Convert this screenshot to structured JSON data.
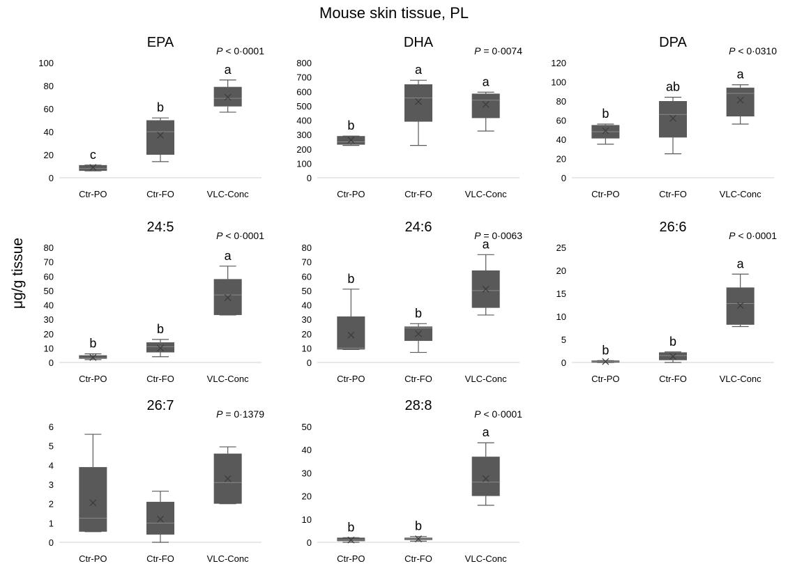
{
  "figure": {
    "title": "Mouse skin tissue, PL",
    "ylabel": "μg/g tissue"
  },
  "colors": {
    "box": "#595959",
    "whisker": "#595959",
    "axis": "#d9d9d9",
    "mean": "#3a3a3a"
  },
  "chart_data": [
    {
      "type": "boxplot",
      "title": "EPA",
      "p_prefix": "P",
      "p_text": " < 0·0001",
      "categories": [
        "Ctr-PO",
        "Ctr-FO",
        "VLC-Conc"
      ],
      "yticks": [
        "0",
        "20",
        "40",
        "60",
        "80",
        "100"
      ],
      "ylim": [
        0,
        100
      ],
      "boxes": [
        {
          "min": 6,
          "q1": 6,
          "median": 8,
          "q3": 11,
          "max": 11,
          "mean": 9,
          "letter": "c"
        },
        {
          "min": 14,
          "q1": 20,
          "median": 40,
          "q3": 50,
          "max": 52,
          "mean": 37,
          "letter": "b"
        },
        {
          "min": 57,
          "q1": 62,
          "median": 69,
          "q3": 79,
          "max": 85,
          "mean": 70,
          "letter": "a"
        }
      ]
    },
    {
      "type": "boxplot",
      "title": "DHA",
      "p_prefix": "P",
      "p_text": " = 0·0074",
      "categories": [
        "Ctr-PO",
        "Ctr-FO",
        "VLC-Conc"
      ],
      "yticks": [
        "0",
        "100",
        "200",
        "300",
        "400",
        "500",
        "600",
        "700",
        "800"
      ],
      "ylim": [
        0,
        800
      ],
      "boxes": [
        {
          "min": 225,
          "q1": 230,
          "median": 250,
          "q3": 290,
          "max": 290,
          "mean": 262,
          "letter": "b"
        },
        {
          "min": 225,
          "q1": 390,
          "median": 555,
          "q3": 650,
          "max": 678,
          "mean": 530,
          "letter": "a"
        },
        {
          "min": 325,
          "q1": 415,
          "median": 540,
          "q3": 585,
          "max": 595,
          "mean": 510,
          "letter": "a"
        }
      ]
    },
    {
      "type": "boxplot",
      "title": "DPA",
      "p_prefix": "P",
      "p_text": " < 0·0310",
      "categories": [
        "Ctr-PO",
        "Ctr-FO",
        "VLC-Conc"
      ],
      "yticks": [
        "0",
        "20",
        "40",
        "60",
        "80",
        "100",
        "120"
      ],
      "ylim": [
        0,
        120
      ],
      "boxes": [
        {
          "min": 35,
          "q1": 41,
          "median": 48,
          "q3": 55,
          "max": 56,
          "mean": 49,
          "letter": "b"
        },
        {
          "min": 25,
          "q1": 42,
          "median": 66,
          "q3": 80,
          "max": 84,
          "mean": 62,
          "letter": "ab"
        },
        {
          "min": 56,
          "q1": 64,
          "median": 88,
          "q3": 94,
          "max": 97,
          "mean": 81,
          "letter": "a"
        }
      ]
    },
    {
      "type": "boxplot",
      "title": "24:5",
      "p_prefix": "P",
      "p_text": " < 0·0001",
      "categories": [
        "Ctr-PO",
        "Ctr-FO",
        "VLC-Conc"
      ],
      "yticks": [
        "0",
        "10",
        "20",
        "30",
        "40",
        "50",
        "60",
        "70",
        "80"
      ],
      "ylim": [
        0,
        80
      ],
      "boxes": [
        {
          "min": 2,
          "q1": 2.5,
          "median": 3,
          "q3": 5,
          "max": 6,
          "mean": 3.5,
          "letter": "b"
        },
        {
          "min": 4,
          "q1": 7,
          "median": 11,
          "q3": 14,
          "max": 16,
          "mean": 10,
          "letter": "b"
        },
        {
          "min": 33,
          "q1": 33,
          "median": 47,
          "q3": 58,
          "max": 67,
          "mean": 45,
          "letter": "a"
        }
      ]
    },
    {
      "type": "boxplot",
      "title": "24:6",
      "p_prefix": "P",
      "p_text": " = 0·0063",
      "categories": [
        "Ctr-PO",
        "Ctr-FO",
        "VLC-Conc"
      ],
      "yticks": [
        "0",
        "10",
        "20",
        "30",
        "40",
        "50",
        "60",
        "70",
        "80"
      ],
      "ylim": [
        0,
        80
      ],
      "boxes": [
        {
          "min": 9,
          "q1": 9,
          "median": 10,
          "q3": 32,
          "max": 51,
          "mean": 19,
          "letter": "b"
        },
        {
          "min": 7,
          "q1": 15,
          "median": 24,
          "q3": 25,
          "max": 27,
          "mean": 20,
          "letter": "b"
        },
        {
          "min": 33,
          "q1": 38,
          "median": 50,
          "q3": 64,
          "max": 75,
          "mean": 51,
          "letter": "a"
        }
      ]
    },
    {
      "type": "boxplot",
      "title": "26:6",
      "p_prefix": "P",
      "p_text": " < 0·0001",
      "categories": [
        "Ctr-PO",
        "Ctr-FO",
        "VLC-Conc"
      ],
      "yticks": [
        "0",
        "5",
        "10",
        "15",
        "20",
        "25"
      ],
      "ylim": [
        0,
        25
      ],
      "boxes": [
        {
          "min": 0,
          "q1": 0,
          "median": 0.2,
          "q3": 0.4,
          "max": 0.4,
          "mean": 0.2,
          "letter": "b"
        },
        {
          "min": 0,
          "q1": 0.5,
          "median": 1.5,
          "q3": 2.2,
          "max": 2.3,
          "mean": 1.3,
          "letter": "b"
        },
        {
          "min": 7.8,
          "q1": 8.2,
          "median": 12.8,
          "q3": 16.3,
          "max": 19.2,
          "mean": 12.4,
          "letter": "a"
        }
      ]
    },
    {
      "type": "boxplot",
      "title": "26:7",
      "p_prefix": "P",
      "p_text": " = 0·1379",
      "categories": [
        "Ctr-PO",
        "Ctr-FO",
        "VLC-Conc"
      ],
      "yticks": [
        "0",
        "1",
        "2",
        "3",
        "4",
        "5",
        "6"
      ],
      "ylim": [
        0,
        6
      ],
      "boxes": [
        {
          "min": 0.55,
          "q1": 0.55,
          "median": 1.25,
          "q3": 3.9,
          "max": 5.6,
          "mean": 2.05,
          "letter": ""
        },
        {
          "min": 0,
          "q1": 0.4,
          "median": 1.0,
          "q3": 2.1,
          "max": 2.65,
          "mean": 1.2,
          "letter": ""
        },
        {
          "min": 2.0,
          "q1": 2.0,
          "median": 3.1,
          "q3": 4.6,
          "max": 4.95,
          "mean": 3.3,
          "letter": ""
        }
      ]
    },
    {
      "type": "boxplot",
      "title": "28:8",
      "p_prefix": "P",
      "p_text": " < 0·0001",
      "categories": [
        "Ctr-PO",
        "Ctr-FO",
        "VLC-Conc"
      ],
      "yticks": [
        "0",
        "10",
        "20",
        "30",
        "40",
        "50"
      ],
      "ylim": [
        0,
        50
      ],
      "boxes": [
        {
          "min": 0,
          "q1": 0.5,
          "median": 1,
          "q3": 2,
          "max": 2,
          "mean": 1,
          "letter": "b"
        },
        {
          "min": 0.5,
          "q1": 1,
          "median": 1.5,
          "q3": 2,
          "max": 2.5,
          "mean": 1.5,
          "letter": "b"
        },
        {
          "min": 16,
          "q1": 20,
          "median": 26,
          "q3": 37,
          "max": 43,
          "mean": 27.5,
          "letter": "a"
        }
      ]
    }
  ]
}
